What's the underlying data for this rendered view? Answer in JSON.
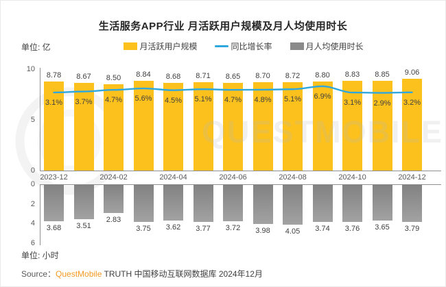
{
  "page": {
    "title": "生活服务APP行业 月活跃用户规模及月人均使用时长",
    "unit_top": "单位: 亿",
    "unit_bottom": "单位: 小时",
    "watermark_text": "QUESTMOBILE",
    "source": {
      "label": "Source：",
      "brand": "QuestMobile",
      "rest": " TRUTH 中国移动互联网数据库 2024年12月"
    }
  },
  "legend": {
    "items": [
      {
        "label": "月活跃用户规模",
        "kind": "bar-swatch",
        "color": "#fcc11c"
      },
      {
        "label": "同比增长率",
        "kind": "line-swatch",
        "color": "#2ea7df"
      },
      {
        "label": "月人均使用时长",
        "kind": "bar-swatch",
        "color": "#8a8a8a"
      }
    ]
  },
  "colors": {
    "bar_orange": "#fcc11c",
    "line_blue": "#2ea7df",
    "bar_gray_top": "#828282",
    "bar_gray_bottom": "#a2a2a2",
    "axis": "#8f8f8f",
    "brand_orange": "#f59a23"
  },
  "chart_data": [
    {
      "type": "bar",
      "title": "月活跃用户规模及同比增长率",
      "x_tick_labels": [
        "2023-12",
        "2024-02",
        "2024-04",
        "2024-06",
        "2024-08",
        "2024-10",
        "2024-12"
      ],
      "y_axis": {
        "unit": "亿",
        "ticks": [
          10,
          5,
          0
        ],
        "range": [
          0,
          10
        ]
      },
      "series": [
        {
          "name": "月活跃用户规模",
          "type": "bar",
          "unit": "亿",
          "values": [
            8.78,
            8.67,
            8.5,
            8.84,
            8.68,
            8.71,
            8.65,
            8.7,
            8.72,
            8.8,
            8.83,
            8.85,
            9.06
          ]
        },
        {
          "name": "同比增长率",
          "type": "line",
          "unit": "%",
          "values": [
            3.1,
            3.7,
            4.7,
            5.6,
            4.5,
            5.1,
            4.7,
            4.8,
            5.1,
            6.9,
            3.1,
            2.9,
            3.2
          ]
        }
      ]
    },
    {
      "type": "bar",
      "title": "月人均使用时长",
      "y_axis": {
        "unit": "小时",
        "ticks": [
          0,
          2,
          4,
          6
        ],
        "range": [
          0,
          6
        ],
        "inverted": true
      },
      "series": [
        {
          "name": "月人均使用时长",
          "type": "bar",
          "unit": "小时",
          "values": [
            3.68,
            3.51,
            2.83,
            3.75,
            3.62,
            3.77,
            3.72,
            3.98,
            4.05,
            3.74,
            3.76,
            3.65,
            3.79
          ]
        }
      ]
    }
  ]
}
